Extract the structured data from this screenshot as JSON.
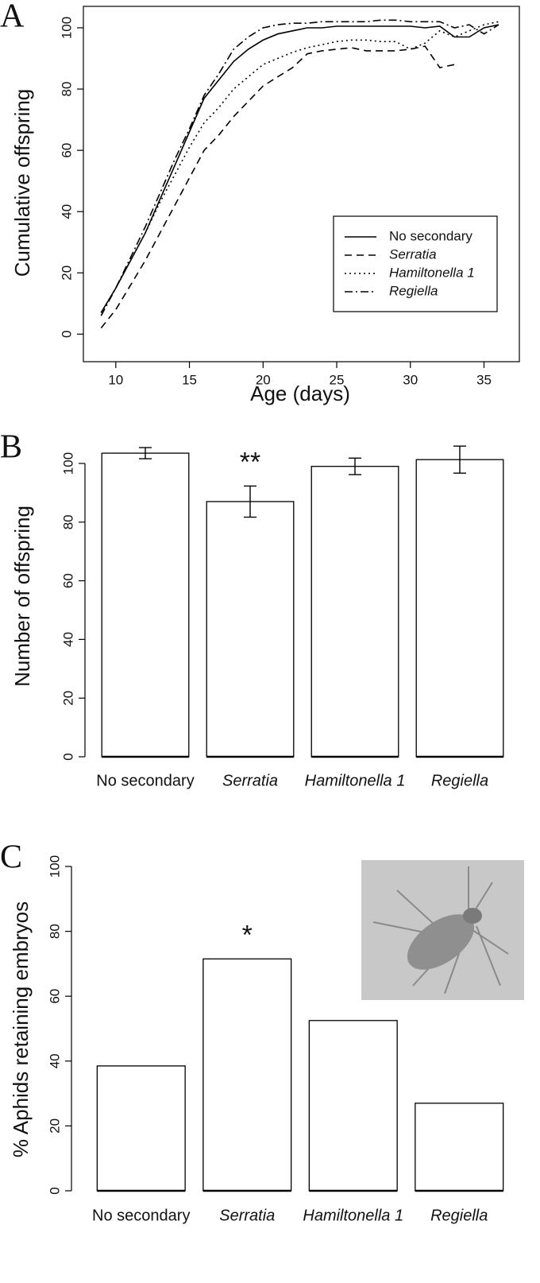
{
  "chart_data": [
    {
      "type": "line",
      "panel_label": "A",
      "x_label": "Age (days)",
      "y_label": "Cumulative offspring",
      "x": [
        9,
        10,
        11,
        12,
        13,
        14,
        15,
        16,
        17,
        18,
        19,
        20,
        21,
        22,
        23,
        24,
        25,
        26,
        27,
        28,
        29,
        30,
        31,
        32,
        33,
        34,
        35,
        36
      ],
      "series": [
        {
          "name": "No secondary",
          "color": "#000000",
          "dash": "solid",
          "italic": false,
          "values": [
            7,
            15,
            24,
            33,
            44,
            55,
            66,
            77,
            83,
            89,
            93,
            96,
            98,
            99,
            100,
            100,
            100.5,
            100.5,
            100.5,
            100.5,
            100.5,
            100.5,
            100,
            100.5,
            97,
            97,
            100,
            101
          ]
        },
        {
          "name": "Serratia",
          "color": "#000000",
          "dash": "dashed",
          "italic": true,
          "values": [
            2,
            8,
            16,
            24,
            33,
            42,
            51,
            60,
            65,
            71,
            76,
            81,
            84,
            87,
            91.5,
            92.5,
            93,
            93.5,
            92.5,
            92.5,
            92.5,
            93,
            94,
            87,
            88,
            null,
            null,
            null
          ]
        },
        {
          "name": "Hamiltonella 1",
          "color": "#000000",
          "dash": "dotted",
          "italic": true,
          "values": [
            7,
            15,
            24,
            33,
            43,
            52,
            61,
            69,
            74,
            80,
            84,
            88,
            90,
            92,
            93.5,
            94.5,
            95.5,
            96,
            96,
            95.5,
            95.5,
            93,
            95,
            99,
            97,
            99,
            101,
            102
          ]
        },
        {
          "name": "Regiella",
          "color": "#000000",
          "dash": "dashdot",
          "italic": true,
          "values": [
            6,
            15,
            25,
            35,
            46,
            57,
            67,
            78,
            85,
            93,
            97,
            100,
            101,
            101.5,
            101.5,
            102,
            102,
            102,
            102,
            102.5,
            102.5,
            102,
            102,
            102,
            100,
            101,
            98,
            101
          ]
        }
      ],
      "xlim": [
        7.8,
        37.4
      ],
      "ylim": [
        -9,
        107
      ],
      "xticks": [
        10,
        15,
        20,
        25,
        30,
        35
      ],
      "yticks": [
        0,
        20,
        40,
        60,
        80,
        100
      ],
      "legend": "bottom-right"
    },
    {
      "type": "bar",
      "panel_label": "B",
      "y_label": "Number of offspring",
      "categories": [
        "No secondary",
        "Serratia",
        "Hamiltonella 1",
        "Regiella"
      ],
      "italic": [
        false,
        true,
        true,
        true
      ],
      "values": [
        103.5,
        87,
        99,
        101.3
      ],
      "errors": [
        1.9,
        5.3,
        2.8,
        4.6
      ],
      "color": "#ffffff",
      "annotations": [
        {
          "category": "Serratia",
          "text": "**"
        }
      ],
      "ylim": [
        0,
        100
      ],
      "yticks": [
        0,
        20,
        40,
        60,
        80,
        100
      ]
    },
    {
      "type": "bar",
      "panel_label": "C",
      "y_label": "% Aphids retaining embryos",
      "categories": [
        "No secondary",
        "Serratia",
        "Hamiltonella 1",
        "Regiella"
      ],
      "italic": [
        false,
        true,
        true,
        true
      ],
      "values": [
        38.5,
        71.5,
        52.5,
        27
      ],
      "color": "#ffffff",
      "annotations": [
        {
          "category": "Serratia",
          "text": "*"
        }
      ],
      "ylim": [
        0,
        100
      ],
      "yticks": [
        0,
        20,
        40,
        60,
        80,
        100
      ]
    }
  ]
}
